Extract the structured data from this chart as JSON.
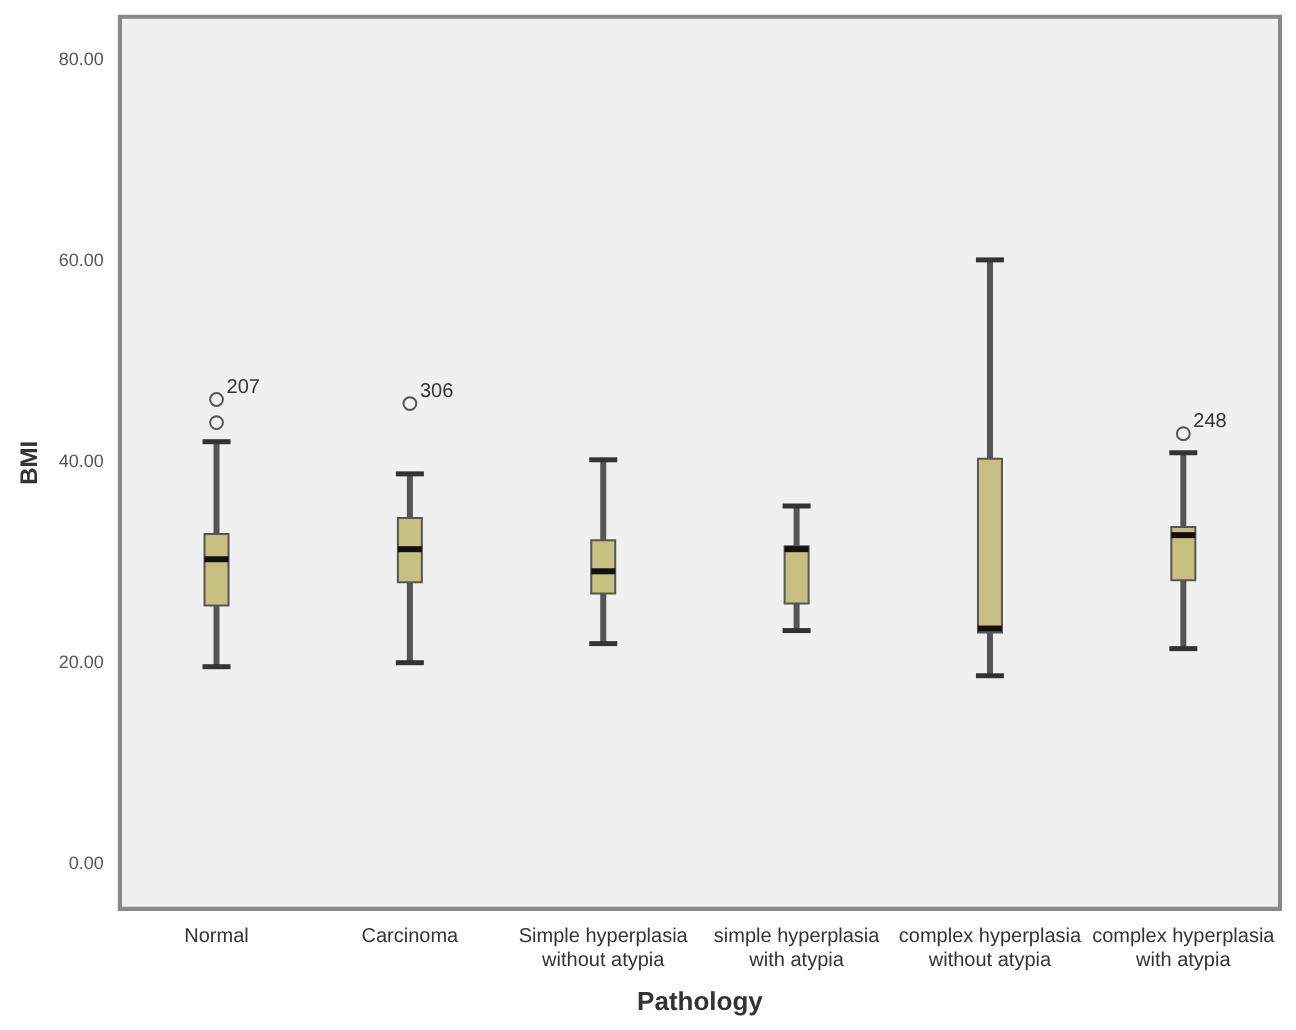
{
  "chart_data": {
    "type": "box",
    "xlabel": "Pathology",
    "ylabel": "BMI",
    "categories": [
      "Normal",
      "Carcinoma",
      "Simple hyperplasia without atypia",
      "simple hyperplasia with atypia",
      "complex hyperplasia without atypia",
      "complex hyperplasia with atypia"
    ],
    "boxes": [
      {
        "low": 19.6,
        "q1": 25.7,
        "median": 30.3,
        "q3": 32.8,
        "high": 42.0,
        "outliers": [
          43.9,
          46.2
        ]
      },
      {
        "low": 20.0,
        "q1": 28.0,
        "median": 31.3,
        "q3": 34.4,
        "high": 38.8,
        "outliers": [
          45.8
        ]
      },
      {
        "low": 21.9,
        "q1": 26.9,
        "median": 29.1,
        "q3": 32.2,
        "high": 40.2
      },
      {
        "low": 23.2,
        "q1": 25.9,
        "median": 31.3,
        "q3": 31.6,
        "high": 35.6
      },
      {
        "low": 18.7,
        "q1": 23.0,
        "median": 23.4,
        "q3": 40.3,
        "high": 60.1
      },
      {
        "low": 21.4,
        "q1": 28.2,
        "median": 32.7,
        "q3": 33.5,
        "high": 40.9,
        "outliers": [
          42.8
        ]
      }
    ],
    "color": "#c8c080",
    "ylim": [
      -4.5,
      84.3
    ],
    "yticks": [
      {
        "value": 0,
        "label": "0.00"
      },
      {
        "value": 20,
        "label": "20.00"
      },
      {
        "value": 40,
        "label": "40.00"
      },
      {
        "value": 60,
        "label": "60.00"
      },
      {
        "value": 80,
        "label": "80.00"
      }
    ],
    "annotations": [
      "207",
      "306",
      "248"
    ],
    "grid": false,
    "legend": false
  }
}
